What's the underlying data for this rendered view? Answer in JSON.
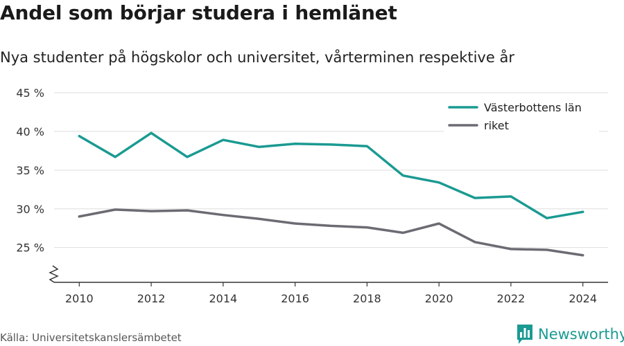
{
  "title": "Andel som börjar studera i hemlänet",
  "subtitle": "Nya studenter på högskolor och universitet, vårterminen respektive år",
  "source": "Källa: Universitetskanslersämbetet",
  "brand": {
    "name": "Newsworthy",
    "icon": "bar-chart-speech-icon",
    "color": "#1a9a92"
  },
  "chart_data": {
    "type": "line",
    "x": [
      2010,
      2011,
      2012,
      2013,
      2014,
      2015,
      2016,
      2017,
      2018,
      2019,
      2020,
      2021,
      2022,
      2023,
      2024
    ],
    "series": [
      {
        "name": "Västerbottens län",
        "color": "#1a9a92",
        "values": [
          39.4,
          36.7,
          39.8,
          36.7,
          38.9,
          38.0,
          38.4,
          38.3,
          38.1,
          34.3,
          33.4,
          31.4,
          31.6,
          28.8,
          29.6
        ]
      },
      {
        "name": "riket",
        "color": "#6b6b73",
        "values": [
          29.0,
          29.9,
          29.7,
          29.8,
          29.2,
          28.7,
          28.1,
          27.8,
          27.6,
          26.9,
          28.1,
          25.7,
          24.8,
          24.7,
          24.0
        ]
      }
    ],
    "y_ticks": [
      25,
      30,
      35,
      40,
      45
    ],
    "y_tick_labels": [
      "25 %",
      "30 %",
      "35 %",
      "40 %",
      "45 %"
    ],
    "x_ticks": [
      2010,
      2012,
      2014,
      2016,
      2018,
      2020,
      2022,
      2024
    ],
    "x_tick_labels": [
      "2010",
      "2012",
      "2014",
      "2016",
      "2018",
      "2020",
      "2022",
      "2024"
    ],
    "ylim": [
      20.5,
      45
    ],
    "xlim": [
      2009.3,
      2024.7
    ],
    "xlabel": "",
    "ylabel": "",
    "grid": true,
    "axis_break": true,
    "legend_position": "top-right"
  }
}
